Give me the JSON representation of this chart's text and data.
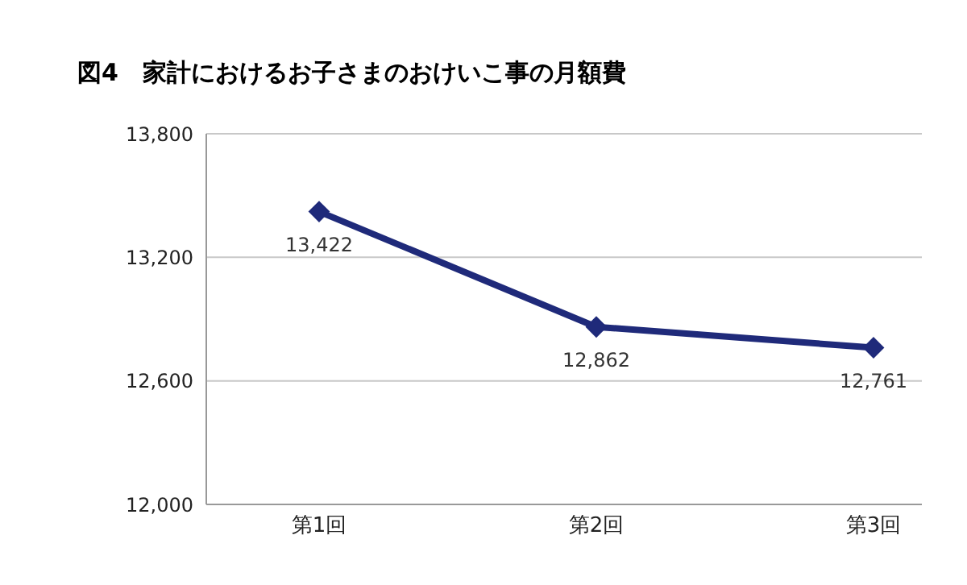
{
  "chart_data": {
    "type": "line",
    "title": "図4　家計におけるお子さまのおけいこ事の月額費",
    "categories": [
      "第1回",
      "第2回",
      "第3回"
    ],
    "series": [
      {
        "color": "#1f2a7a",
        "values": [
          13422,
          12862,
          12761
        ],
        "value_labels": [
          "13,422",
          "12,862",
          "12,761"
        ]
      }
    ],
    "ylim": [
      12000,
      13800
    ],
    "yticks": [
      {
        "value": 12000,
        "label": "12,000"
      },
      {
        "value": 12600,
        "label": "12,600"
      },
      {
        "value": 13200,
        "label": "13,200"
      },
      {
        "value": 13800,
        "label": "13,800"
      }
    ],
    "grid": "y",
    "marker": "diamond",
    "legend": false
  }
}
